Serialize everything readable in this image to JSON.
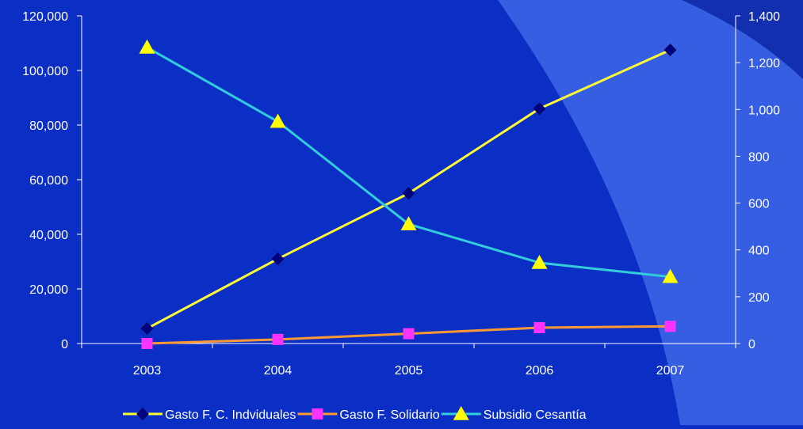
{
  "chart_data": {
    "type": "line",
    "title": "",
    "xlabel": "",
    "ylabel": "",
    "categories": [
      "2003",
      "2004",
      "2005",
      "2006",
      "2007"
    ],
    "left_axis": {
      "ylim": [
        0,
        120000
      ],
      "ticks": [
        "0",
        "20,000",
        "40,000",
        "60,000",
        "80,000",
        "100,000",
        "120,000"
      ]
    },
    "right_axis": {
      "ylim": [
        0,
        1400
      ],
      "ticks": [
        "0",
        "200",
        "400",
        "600",
        "800",
        "1,000",
        "1,200",
        "1,400"
      ]
    },
    "series": [
      {
        "name": "Gasto F. C. Indviduales",
        "axis": "left",
        "line_color": "#ffff33",
        "marker": "diamond",
        "marker_color": "#000080",
        "values": [
          5500,
          31000,
          55000,
          86000,
          107500
        ]
      },
      {
        "name": "Gasto F. Solidario",
        "axis": "left",
        "line_color": "#ff9933",
        "marker": "square",
        "marker_color": "#ff33ff",
        "values": [
          0,
          1500,
          3600,
          5800,
          6300
        ]
      },
      {
        "name": "Subsidio Cesantía",
        "axis": "right",
        "line_color": "#33ccdd",
        "marker": "triangle",
        "marker_color": "#ffff00",
        "values": [
          1265,
          948,
          510,
          345,
          285
        ]
      }
    ],
    "grid": false,
    "legend_position": "bottom",
    "colors": {
      "background": "#0b2fc4",
      "background_overlay": "#3d66e8",
      "axis": "#ffffff",
      "text": "#ffffff"
    }
  }
}
